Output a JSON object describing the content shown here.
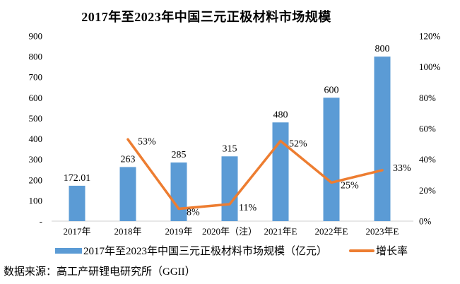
{
  "title": "2017年至2023年中国三元正极材料市场规模",
  "source_note": "数据来源：高工产研锂电研究所（GGII）",
  "colors": {
    "bar": "#5B9BD5",
    "line": "#ED7D31",
    "axis_line": "#D9D9D9",
    "text": "#000000"
  },
  "legend": [
    {
      "type": "bar",
      "label": "2017年至2023年中国三元正极材料市场规模（亿元）"
    },
    {
      "type": "line",
      "label": "增长率"
    }
  ],
  "chart_data": {
    "type": "bar+line",
    "categories": [
      "2017年",
      "2018年",
      "2019年",
      "2020年（注）",
      "2021年E",
      "2022年E",
      "2023年E"
    ],
    "series": [
      {
        "name": "2017年至2023年中国三元正极材料市场规模（亿元）",
        "type": "bar",
        "axis": "left",
        "values": [
          172.01,
          263,
          285,
          315,
          480,
          600,
          800
        ],
        "labels": [
          "172.01",
          "263",
          "285",
          "315",
          "480",
          "600",
          "800"
        ]
      },
      {
        "name": "增长率",
        "type": "line",
        "axis": "right",
        "values": [
          null,
          0.53,
          0.08,
          0.11,
          0.52,
          0.25,
          0.33
        ],
        "labels": [
          null,
          "53%",
          "8%",
          "11%",
          "52%",
          "25%",
          "33%"
        ]
      }
    ],
    "left_axis": {
      "min": 0,
      "max": 900,
      "step": 100,
      "tick_labels": [
        "-",
        "100",
        "200",
        "300",
        "400",
        "500",
        "600",
        "700",
        "800",
        "900"
      ]
    },
    "right_axis": {
      "min": 0,
      "max": 1.2,
      "step": 0.2,
      "tick_labels": [
        "0%",
        "20%",
        "40%",
        "60%",
        "80%",
        "100%",
        "120%"
      ]
    },
    "grid": false,
    "legend_position": "bottom"
  }
}
